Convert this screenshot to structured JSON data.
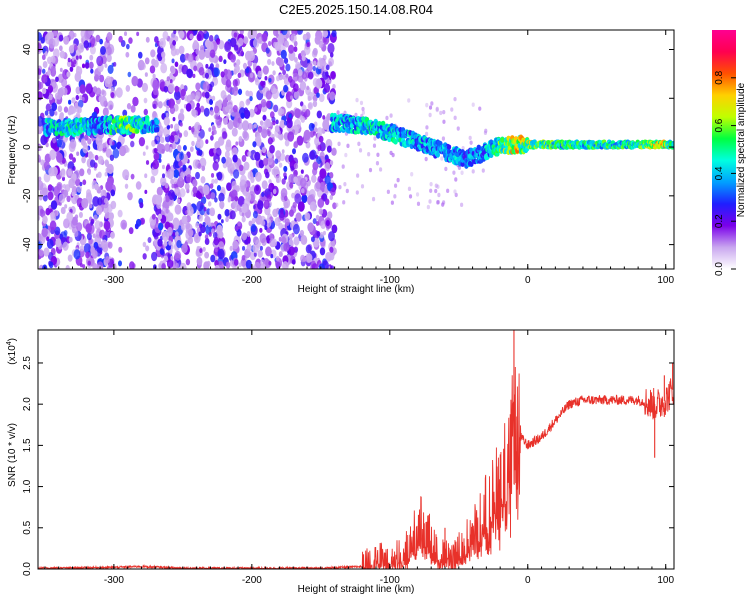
{
  "title": "C2E5.2025.150.14.08.R04",
  "chart_data": [
    {
      "type": "heatmap",
      "xlabel": "Height of straight line (km)",
      "ylabel": "Frequency (Hz)",
      "xlim": [
        -355,
        106
      ],
      "ylim": [
        -50,
        48
      ],
      "xticks": [
        -300,
        -200,
        -100,
        0,
        100
      ],
      "yticks": [
        -40,
        -20,
        0,
        20,
        40
      ],
      "colorbar": {
        "label": "Normalized spectral amplitude",
        "range": [
          0,
          1
        ],
        "ticks": [
          0.0,
          0.2,
          0.4,
          0.6,
          0.8
        ],
        "colors": [
          "#ffffff",
          "#c9a6ef",
          "#7a00ea",
          "#1f1fff",
          "#00a0ff",
          "#00ffe0",
          "#00ff40",
          "#c0ff00",
          "#ffd000",
          "#ff5000",
          "#ff0050",
          "#ff0090"
        ]
      },
      "ridge": [
        {
          "x": -350,
          "f": 8,
          "a": 0.45
        },
        {
          "x": -330,
          "f": 8,
          "a": 0.55
        },
        {
          "x": -310,
          "f": 9,
          "a": 0.4
        },
        {
          "x": -295,
          "f": 9,
          "a": 0.6
        },
        {
          "x": -280,
          "f": 9,
          "a": 0.55
        },
        {
          "x": -270,
          "f": 9,
          "a": 0.4
        },
        {
          "x": -140,
          "f": 10,
          "a": 0.45
        },
        {
          "x": -120,
          "f": 9,
          "a": 0.5
        },
        {
          "x": -100,
          "f": 6,
          "a": 0.5
        },
        {
          "x": -80,
          "f": 2,
          "a": 0.45
        },
        {
          "x": -60,
          "f": -2,
          "a": 0.45
        },
        {
          "x": -45,
          "f": -5,
          "a": 0.4
        },
        {
          "x": -35,
          "f": -3,
          "a": 0.4
        },
        {
          "x": -25,
          "f": 0,
          "a": 0.5
        },
        {
          "x": -10,
          "f": 1,
          "a": 0.75
        },
        {
          "x": 0,
          "f": 1,
          "a": 0.7
        },
        {
          "x": 20,
          "f": 1,
          "a": 0.55
        },
        {
          "x": 50,
          "f": 1,
          "a": 0.55
        },
        {
          "x": 80,
          "f": 1,
          "a": 0.55
        },
        {
          "x": 95,
          "f": 1,
          "a": 0.85
        },
        {
          "x": 106,
          "f": 1,
          "a": 0.6
        }
      ],
      "noise_region_x": [
        -355,
        -140
      ]
    },
    {
      "type": "line",
      "xlabel": "Height of straight line (km)",
      "ylabel": "SNR (10 * v/v)",
      "yscale_label": "(x10",
      "yscale_exp": "4",
      "yscale_close": ")",
      "xlim": [
        -355,
        106
      ],
      "ylim": [
        0,
        2.9
      ],
      "xticks": [
        -300,
        -200,
        -100,
        0,
        100
      ],
      "yticks": [
        0.0,
        0.5,
        1.0,
        1.5,
        2.0,
        2.5
      ],
      "color": "#e8312a",
      "series": [
        {
          "x": [
            -355,
            -320,
            -300,
            -280,
            -250,
            -200,
            -150,
            -120,
            -110,
            -100,
            -90,
            -85,
            -80,
            -75,
            -70,
            -65,
            -60,
            -55,
            -50,
            -45,
            -40,
            -35,
            -30,
            -25,
            -20,
            -15,
            -12,
            -10,
            -8,
            -5,
            0,
            10,
            20,
            30,
            40,
            60,
            80,
            90,
            95,
            100,
            106
          ],
          "y": [
            0.01,
            0.015,
            0.02,
            0.03,
            0.01,
            0.01,
            0.01,
            0.03,
            0.1,
            0.12,
            0.15,
            0.3,
            0.5,
            0.55,
            0.35,
            0.2,
            0.12,
            0.15,
            0.2,
            0.3,
            0.45,
            0.55,
            0.75,
            0.9,
            1.1,
            1.3,
            1.5,
            1.8,
            1.7,
            1.6,
            1.5,
            1.6,
            1.8,
            2.0,
            2.05,
            2.05,
            2.05,
            2.0,
            2.0,
            2.05,
            2.2
          ]
        }
      ],
      "spikes": [
        {
          "x": -10,
          "y": 2.9
        },
        {
          "x": -60,
          "y": 0.5
        },
        {
          "x": 92,
          "y": 1.35
        },
        {
          "x": 99,
          "y": 2.35
        },
        {
          "x": 105,
          "y": 2.5
        }
      ]
    }
  ]
}
